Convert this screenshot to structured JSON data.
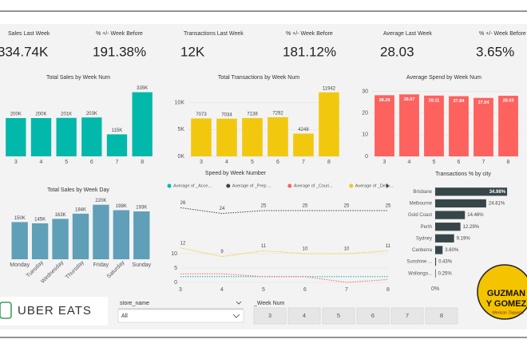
{
  "kpis": [
    {
      "label": "Sales Last Week",
      "value": "334.74K"
    },
    {
      "label": "% +/- Week Before",
      "value": "191.38%"
    },
    {
      "label": "Transactions Last Week",
      "value": "12K"
    },
    {
      "label": "% +/- Week Before",
      "value": "181.12%"
    },
    {
      "label": "Average Last Week",
      "value": "28.03"
    },
    {
      "label": "% +/- Week Before",
      "value": "3.65%"
    }
  ],
  "chart_data": [
    {
      "type": "bar",
      "title": "Total Sales by Week Num",
      "categories": [
        "3",
        "4",
        "5",
        "6",
        "7",
        "8"
      ],
      "values": [
        200000,
        200000,
        201000,
        203000,
        115000,
        335000
      ],
      "value_labels": [
        "200K",
        "200K",
        "201K",
        "203K",
        "115K",
        "335K"
      ],
      "color": "#01b8aa",
      "ylim": [
        0,
        350000
      ]
    },
    {
      "type": "bar",
      "title": "Total Transactions by Week Num",
      "categories": [
        "3",
        "4",
        "5",
        "6",
        "7",
        "8"
      ],
      "values": [
        7073,
        7034,
        7138,
        7292,
        4248,
        11942
      ],
      "color": "#f2c80f",
      "ylim": [
        0,
        12500
      ],
      "yticks": [
        {
          "value": 0,
          "label": "0K"
        },
        {
          "value": 5000,
          "label": "5K"
        },
        {
          "value": 10000,
          "label": "10K"
        }
      ],
      "grid": true
    },
    {
      "type": "bar",
      "title": "Average Spend by Week Num",
      "categories": [
        "3",
        "4",
        "5",
        "6",
        "7",
        "8"
      ],
      "values": [
        28.28,
        28.67,
        28.11,
        27.84,
        27.04,
        28.03
      ],
      "color": "#fd625e",
      "ylim": [
        0,
        31
      ],
      "yticks": [
        0,
        10,
        20,
        30
      ],
      "grid": true,
      "label_position": "inside"
    },
    {
      "type": "bar",
      "title": "Total Sales by Week Day",
      "categories": [
        "Monday",
        "Tuesday",
        "Wednesday",
        "Thursday",
        "Friday",
        "Saturday",
        "Sunday"
      ],
      "values": [
        150000,
        145000,
        163000,
        184000,
        220000,
        198000,
        193000
      ],
      "value_labels": [
        "150K",
        "145K",
        "163K",
        "184K",
        "220K",
        "198K",
        "193K"
      ],
      "color": "#5f9fb8",
      "ylim": [
        0,
        235000
      ]
    },
    {
      "type": "line",
      "title": "Speed by Week Number",
      "categories": [
        "3",
        "4",
        "5",
        "6",
        "7",
        "8"
      ],
      "ylim": [
        0,
        30
      ],
      "yticks": [
        0,
        5,
        10
      ],
      "grid": true,
      "legend": "top",
      "series": [
        {
          "name": "Average of _Acce...",
          "color": "#01b8aa",
          "values": [
            2,
            2,
            2,
            2,
            2,
            2
          ]
        },
        {
          "name": "Average of _Prep ...",
          "color": "#374649",
          "values": [
            26,
            24,
            25,
            25,
            25,
            25
          ],
          "show_labels": true
        },
        {
          "name": "Average of _Couri...",
          "color": "#fd625e",
          "values": [
            3,
            3,
            2,
            2,
            0,
            1
          ]
        },
        {
          "name": "Average of _Deliv...",
          "color": "#f2c80f",
          "values": [
            12,
            9,
            11,
            10,
            10,
            11
          ],
          "show_labels": true
        }
      ]
    },
    {
      "type": "hbar",
      "title": "Transactions % by city",
      "categories": [
        "Brisbane",
        "Melbourne",
        "Gold Coast",
        "Perth",
        "Sydney",
        "Canberra",
        "Sunshine ...",
        "Wollongo..."
      ],
      "values": [
        34.98,
        24.81,
        14.46,
        12.29,
        9.19,
        3.6,
        0.43,
        0.25
      ],
      "value_labels": [
        "34.98%",
        "24.81%",
        "14.46%",
        "12.29%",
        "9.19%",
        "3.60%",
        "0.43%",
        "0.25%"
      ],
      "color": "#374649",
      "xlim": [
        0,
        40
      ],
      "xticks": [
        {
          "value": 0,
          "label": "0%"
        }
      ]
    }
  ],
  "slicers": {
    "store": {
      "title": "store_name",
      "value": "All"
    },
    "week": {
      "title": "_Week Num",
      "options": [
        "3",
        "4",
        "5",
        "6",
        "7",
        "8"
      ]
    }
  },
  "logos": {
    "uber": "UBER EATS",
    "guzman": [
      "GUZMAN",
      "Y GOMEZ"
    ],
    "tagline": "Mexican Taqueria"
  }
}
